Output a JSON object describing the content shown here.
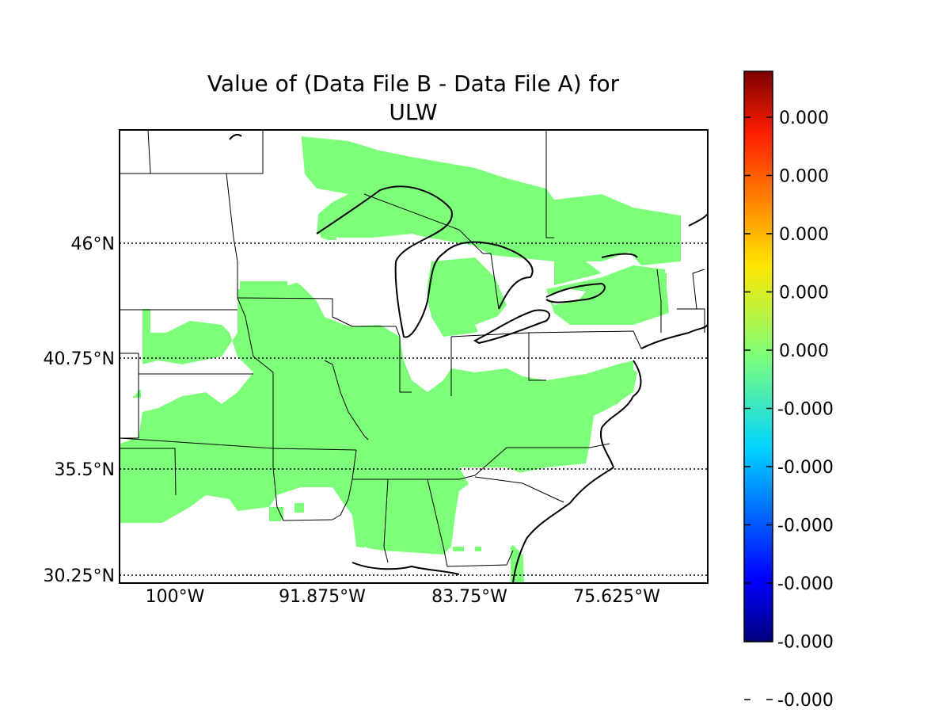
{
  "figure": {
    "title_line1": "Value of (Data File B - Data File A) for",
    "title_line2": "ULW"
  },
  "map": {
    "lat_labels": [
      "46°N",
      "40.75°N",
      "35.5°N",
      "30.25°N"
    ],
    "lon_labels": [
      "100°W",
      "91.875°W",
      "83.75°W",
      "75.625°W"
    ],
    "fill_color": "#7dff7a",
    "gridline_style": "dotted"
  },
  "colorbar": {
    "tick_labels": [
      "0.000",
      "0.000",
      "0.000",
      "0.000",
      "0.000",
      "-0.000",
      "-0.000",
      "-0.000",
      "-0.000",
      "-0.000",
      "-0.000"
    ],
    "colormap": "jet"
  },
  "chart_data": {
    "type": "heatmap",
    "title": "Value of (Data File B - Data File A) for ULW",
    "variable": "ULW",
    "lat_ticks": [
      46,
      40.75,
      35.5,
      30.25
    ],
    "lon_ticks": [
      -100,
      -91.875,
      -83.75,
      -75.625
    ],
    "colorbar_ticks": [
      "0.000",
      "0.000",
      "0.000",
      "0.000",
      "0.000",
      "-0.000",
      "-0.000",
      "-0.000",
      "-0.000",
      "-0.000",
      "-0.000"
    ],
    "legend": "right",
    "grid": true
  }
}
